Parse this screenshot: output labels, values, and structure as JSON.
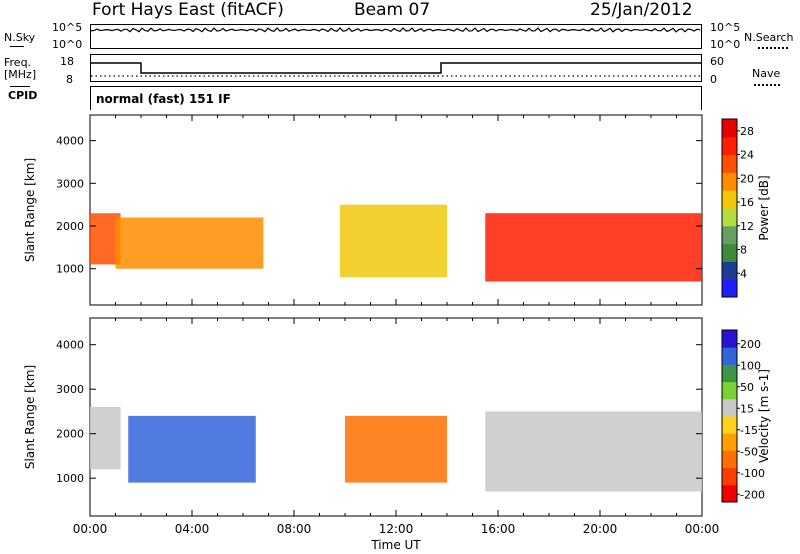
{
  "header": {
    "station": "Fort Hays East (fitACF)",
    "beam": "Beam 07",
    "date": "25/Jan/2012"
  },
  "small_panels": {
    "nsky": {
      "label": "N.Sky",
      "ticks": [
        "10^5",
        "10^0"
      ]
    },
    "nsearch": {
      "label": "N.Search",
      "ticks": [
        "10^5",
        "10^0"
      ]
    },
    "freq": {
      "label_line1": "Freq.",
      "label_line2": "[MHz]",
      "ticks": [
        "18",
        "8"
      ]
    },
    "nave": {
      "label": "Nave",
      "ticks": [
        "60",
        "0"
      ]
    },
    "cpid": {
      "label": "CPID",
      "value": "normal (fast) 151 IF"
    }
  },
  "colors": {
    "power": [
      "#1e1eff",
      "#1e3c96",
      "#3c8c3c",
      "#64a064",
      "#b4dc3c",
      "#f0c80a",
      "#ff8c00",
      "#ff5000",
      "#ff1e00",
      "#e60000"
    ],
    "velocity": [
      "#2814d2",
      "#3264dc",
      "#3c9646",
      "#78d232",
      "#c8c8c8",
      "#ffd21e",
      "#ffa000",
      "#ff6e00",
      "#ff3c00",
      "#f00000"
    ]
  },
  "chart_data": [
    {
      "type": "heatmap",
      "panel": "power",
      "ylabel": "Slant Range [km]",
      "ylim": [
        150,
        4600
      ],
      "yticks": [
        "1000",
        "2000",
        "3000",
        "4000"
      ],
      "colorbar": {
        "label": "Power [dB]",
        "ticks": [
          "4",
          "8",
          "12",
          "16",
          "20",
          "24",
          "28"
        ],
        "range": [
          0,
          30
        ]
      },
      "regions": [
        {
          "t0": 0.0,
          "t1": 1.2,
          "r0": 1100,
          "r1": 2300,
          "value": 22
        },
        {
          "t0": 1.0,
          "t1": 6.8,
          "r0": 1000,
          "r1": 2200,
          "value": 20
        },
        {
          "t0": 9.8,
          "t1": 14.0,
          "r0": 800,
          "r1": 2500,
          "value": 16
        },
        {
          "t0": 15.5,
          "t1": 24.0,
          "r0": 700,
          "r1": 2300,
          "value": 24
        }
      ]
    },
    {
      "type": "heatmap",
      "panel": "velocity",
      "ylabel": "Slant Range [km]",
      "ylim": [
        150,
        4600
      ],
      "yticks": [
        "1000",
        "2000",
        "3000",
        "4000"
      ],
      "xticks": [
        "00:00",
        "04:00",
        "08:00",
        "12:00",
        "16:00",
        "20:00",
        "00:00"
      ],
      "xlabel": "Time UT",
      "colorbar": {
        "label": "Velocity [m s-1]",
        "ticks": [
          "200",
          "100",
          "50",
          "15",
          "-15",
          "-50",
          "-100",
          "-200"
        ],
        "range": [
          -250,
          250
        ]
      },
      "regions": [
        {
          "t0": 0.0,
          "t1": 1.2,
          "r0": 1200,
          "r1": 2600,
          "value": 0
        },
        {
          "t0": 1.5,
          "t1": 6.5,
          "r0": 900,
          "r1": 2400,
          "value": 180
        },
        {
          "t0": 10.0,
          "t1": 14.0,
          "r0": 900,
          "r1": 2400,
          "value": -150
        },
        {
          "t0": 15.5,
          "t1": 24.0,
          "r0": 700,
          "r1": 2500,
          "value": 0
        }
      ]
    }
  ]
}
